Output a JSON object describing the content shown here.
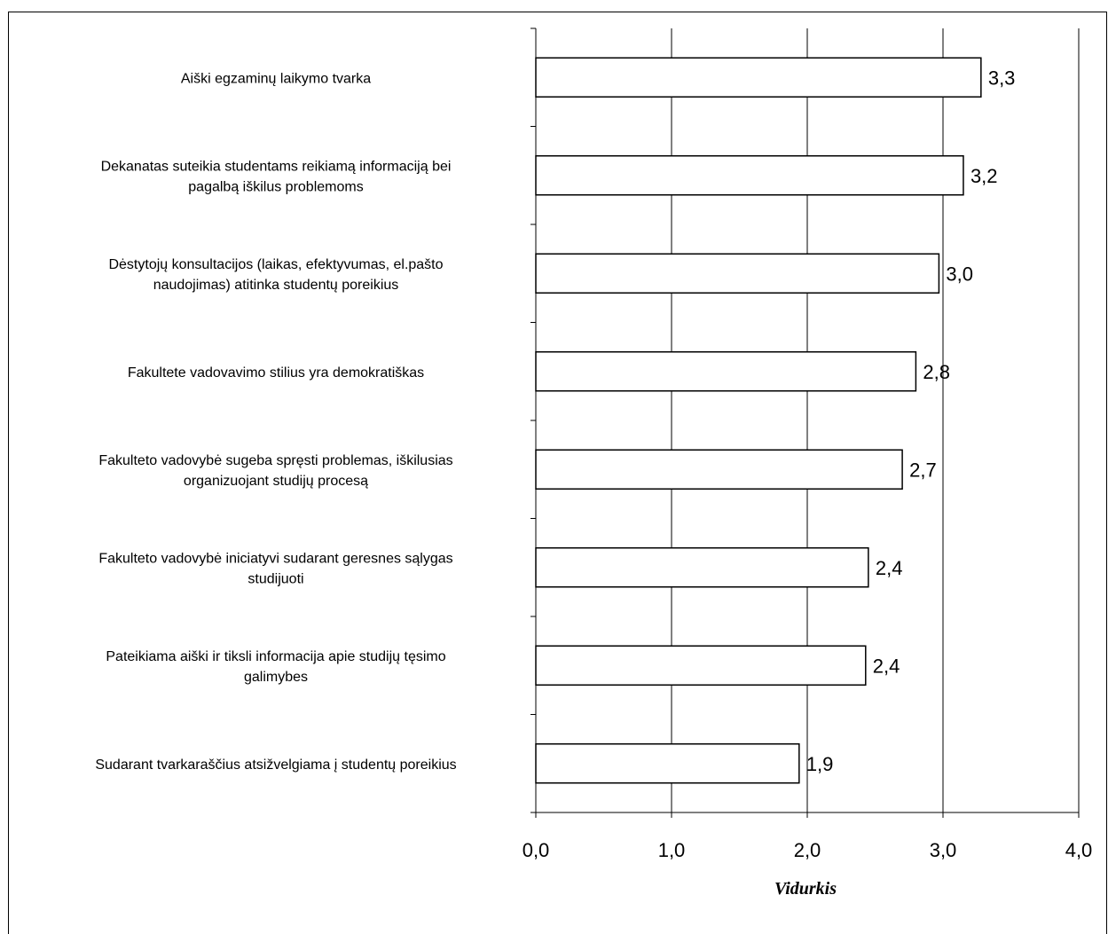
{
  "chart_data": {
    "type": "bar",
    "orientation": "horizontal",
    "categories": [
      [
        "Aiški egzaminų laikymo tvarka"
      ],
      [
        "Dekanatas suteikia studentams reikiamą informaciją bei",
        "pagalbą iškilus problemoms"
      ],
      [
        "Dėstytojų konsultacijos (laikas, efektyvumas, el.pašto",
        "naudojimas) atitinka studentų poreikius"
      ],
      [
        "Fakultete vadovavimo stilius yra demokratiškas"
      ],
      [
        "Fakulteto vadovybė sugeba spręsti problemas, iškilusias",
        "organizuojant studijų procesą"
      ],
      [
        "Fakulteto vadovybė iniciatyvi sudarant geresnes sąlygas",
        "studijuoti"
      ],
      [
        "Pateikiama aiški ir tiksli informacija apie studijų tęsimo",
        "galimybes"
      ],
      [
        "Sudarant tvarkaraščius atsižvelgiama į studentų poreikius"
      ]
    ],
    "values": [
      3.28,
      3.15,
      2.97,
      2.8,
      2.7,
      2.45,
      2.43,
      1.94
    ],
    "value_labels": [
      "3,3",
      "3,2",
      "3,0",
      "2,8",
      "2,7",
      "2,4",
      "2,4",
      "1,9"
    ],
    "xlabel": "Vidurkis",
    "xlim": [
      0,
      4
    ],
    "xticks": [
      "0,0",
      "1,0",
      "2,0",
      "3,0",
      "4,0"
    ],
    "grid": "vertical",
    "bar_fill": "#ffffff",
    "bar_stroke": "#000000"
  }
}
